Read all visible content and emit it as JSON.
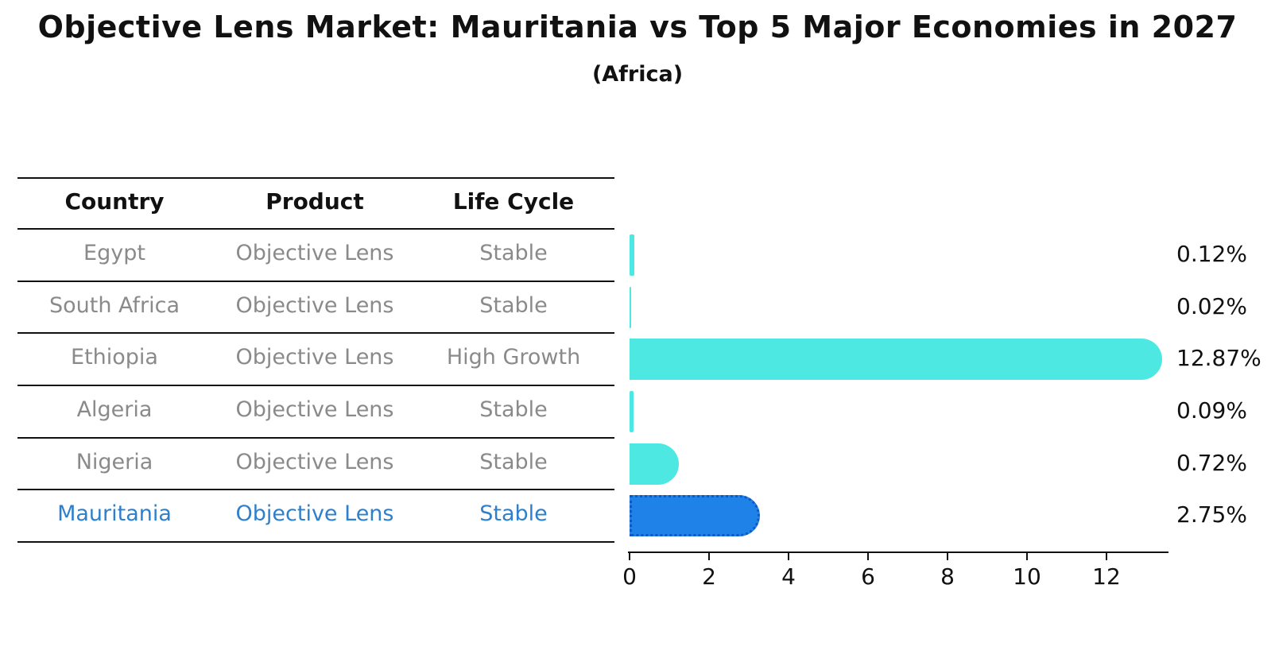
{
  "title": "Objective Lens Market: Mauritania vs Top 5 Major Economies in 2027",
  "subtitle": "(Africa)",
  "table": {
    "headers": [
      "Country",
      "Product",
      "Life Cycle"
    ],
    "rows": [
      {
        "country": "Egypt",
        "product": "Objective Lens",
        "life_cycle": "Stable",
        "highlight": false
      },
      {
        "country": "South Africa",
        "product": "Objective Lens",
        "life_cycle": "Stable",
        "highlight": false
      },
      {
        "country": "Ethiopia",
        "product": "Objective Lens",
        "life_cycle": "High Growth",
        "highlight": false
      },
      {
        "country": "Algeria",
        "product": "Objective Lens",
        "life_cycle": "Stable",
        "highlight": false
      },
      {
        "country": "Nigeria",
        "product": "Objective Lens",
        "life_cycle": "Stable",
        "highlight": false
      },
      {
        "country": "Mauritania",
        "product": "Objective Lens",
        "life_cycle": "Stable",
        "highlight": true
      }
    ]
  },
  "chart_data": {
    "type": "bar",
    "orientation": "horizontal",
    "title": "Objective Lens Market: Mauritania vs Top 5 Major Economies in 2027",
    "subtitle": "(Africa)",
    "categories": [
      "Egypt",
      "South Africa",
      "Ethiopia",
      "Algeria",
      "Nigeria",
      "Mauritania"
    ],
    "values": [
      0.12,
      0.02,
      12.87,
      0.09,
      0.72,
      2.75
    ],
    "value_labels": [
      "0.12%",
      "0.02%",
      "12.87%",
      "0.09%",
      "0.72%",
      "2.75%"
    ],
    "x_ticks": [
      0,
      2,
      4,
      6,
      8,
      10,
      12
    ],
    "xlim": [
      0,
      13.6
    ],
    "xlabel": "",
    "ylabel": "",
    "grid": false,
    "legend": false,
    "highlight_index": 5
  },
  "colors": {
    "bar_default": "#4DE8E2",
    "bar_highlight": "#1E82E8",
    "bar_highlight_border": "#1057C8",
    "row_text": "#8A8A8A",
    "highlight_text": "#2E7FCC",
    "heading_text": "#111111",
    "axis": "#111111"
  }
}
